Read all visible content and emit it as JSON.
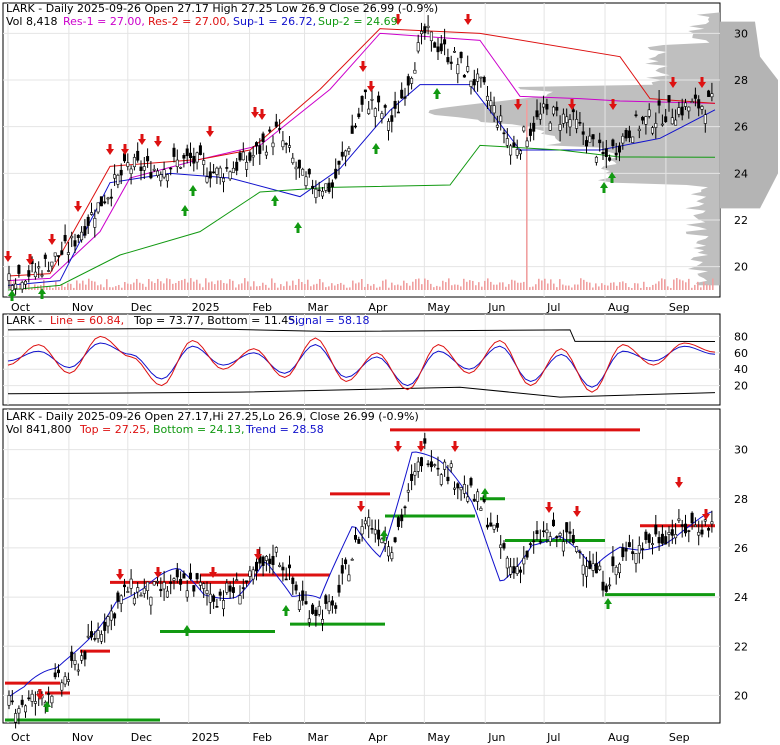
{
  "colors": {
    "up_arrow": "#119911",
    "down_arrow": "#dd1111",
    "res1": "#cc00cc",
    "res2": "#dd1111",
    "sup1": "#1111cc",
    "sup2": "#119911",
    "profile": "#b4b4b4",
    "volume": "#f0a0a0",
    "stoch_line": "#dd1111",
    "stoch_signal": "#1111cc"
  },
  "panel1": {
    "hdr_ticker": "LARK - Daily 2025-09-26 Open 27.17  High 27.25  Low 26.9  Close 26.99 (-0.9%)",
    "hdr_vol": "Vol 8,418",
    "hdr_res1": "Res-1 = 27.00,",
    "hdr_res2": "Res-2 = 27.00,",
    "hdr_sup1": "Sup-1 = 26.72,",
    "hdr_sup2": "Sup-2 = 24.69",
    "yticks": [
      "30",
      "28",
      "26",
      "24",
      "22",
      "20"
    ]
  },
  "panel2": {
    "hdr_ticker": "LARK - ",
    "hdr_line": "Line = 60.84,",
    "hdr_tb": "Top = 73.77, Bottom = 11.45,",
    "hdr_signal": "Signal = 58.18",
    "yticks": [
      "80",
      "60",
      "40",
      "20"
    ]
  },
  "panel3": {
    "hdr_ticker": "LARK - Daily 2025-09-26 Open 27.17,Hi 27.25,Lo 26.9, Close 26.99 (-0.9%)",
    "hdr_vol": "Vol 841,800",
    "hdr_top": "Top = 27.25,",
    "hdr_bottom": "Bottom = 24.13,",
    "hdr_trend": "Trend = 28.58",
    "yticks": [
      "30",
      "28",
      "26",
      "24",
      "22",
      "20"
    ]
  },
  "xaxis": [
    "Oct",
    "Nov",
    "Dec",
    "2025",
    "Feb",
    "Mar",
    "Apr",
    "May",
    "Jun",
    "Jul",
    "Aug",
    "Sep"
  ],
  "chart_data": [
    {
      "type": "candlestick",
      "title": "LARK - Daily 2025-09-26",
      "close_series": [
        {
          "date": "2024-10-01",
          "close": 19.6
        },
        {
          "date": "2024-10-15",
          "close": 19.8
        },
        {
          "date": "2024-11-01",
          "close": 20.8
        },
        {
          "date": "2024-11-15",
          "close": 22.5
        },
        {
          "date": "2024-12-01",
          "close": 24.3
        },
        {
          "date": "2024-12-15",
          "close": 24.2
        },
        {
          "date": "2025-01-02",
          "close": 24.6
        },
        {
          "date": "2025-01-15",
          "close": 24.0
        },
        {
          "date": "2025-02-01",
          "close": 24.6
        },
        {
          "date": "2025-02-15",
          "close": 25.8
        },
        {
          "date": "2025-03-01",
          "close": 23.6
        },
        {
          "date": "2025-03-15",
          "close": 23.4
        },
        {
          "date": "2025-04-01",
          "close": 27.2
        },
        {
          "date": "2025-04-15",
          "close": 26.2
        },
        {
          "date": "2025-05-01",
          "close": 30.0
        },
        {
          "date": "2025-05-15",
          "close": 29.0
        },
        {
          "date": "2025-06-01",
          "close": 27.5
        },
        {
          "date": "2025-06-15",
          "close": 25.0
        },
        {
          "date": "2025-07-01",
          "close": 26.6
        },
        {
          "date": "2025-07-15",
          "close": 26.3
        },
        {
          "date": "2025-08-01",
          "close": 24.6
        },
        {
          "date": "2025-08-15",
          "close": 26.0
        },
        {
          "date": "2025-09-01",
          "close": 26.6
        },
        {
          "date": "2025-09-15",
          "close": 26.9
        },
        {
          "date": "2025-09-26",
          "close": 26.99
        }
      ],
      "ylim": [
        19,
        31
      ]
    },
    {
      "type": "line",
      "series": [
        {
          "name": "Line",
          "values": [
            45,
            70,
            35,
            80,
            55,
            20,
            75,
            40,
            65,
            30,
            78,
            25,
            60,
            15,
            70,
            35,
            75,
            20,
            65,
            12,
            70,
            45,
            72,
            60.84
          ]
        },
        {
          "name": "Signal",
          "values": [
            50,
            62,
            42,
            72,
            58,
            28,
            68,
            45,
            60,
            35,
            70,
            30,
            55,
            20,
            62,
            40,
            68,
            25,
            58,
            18,
            62,
            50,
            68,
            58.18
          ]
        }
      ],
      "ylim": [
        0,
        100
      ]
    }
  ]
}
